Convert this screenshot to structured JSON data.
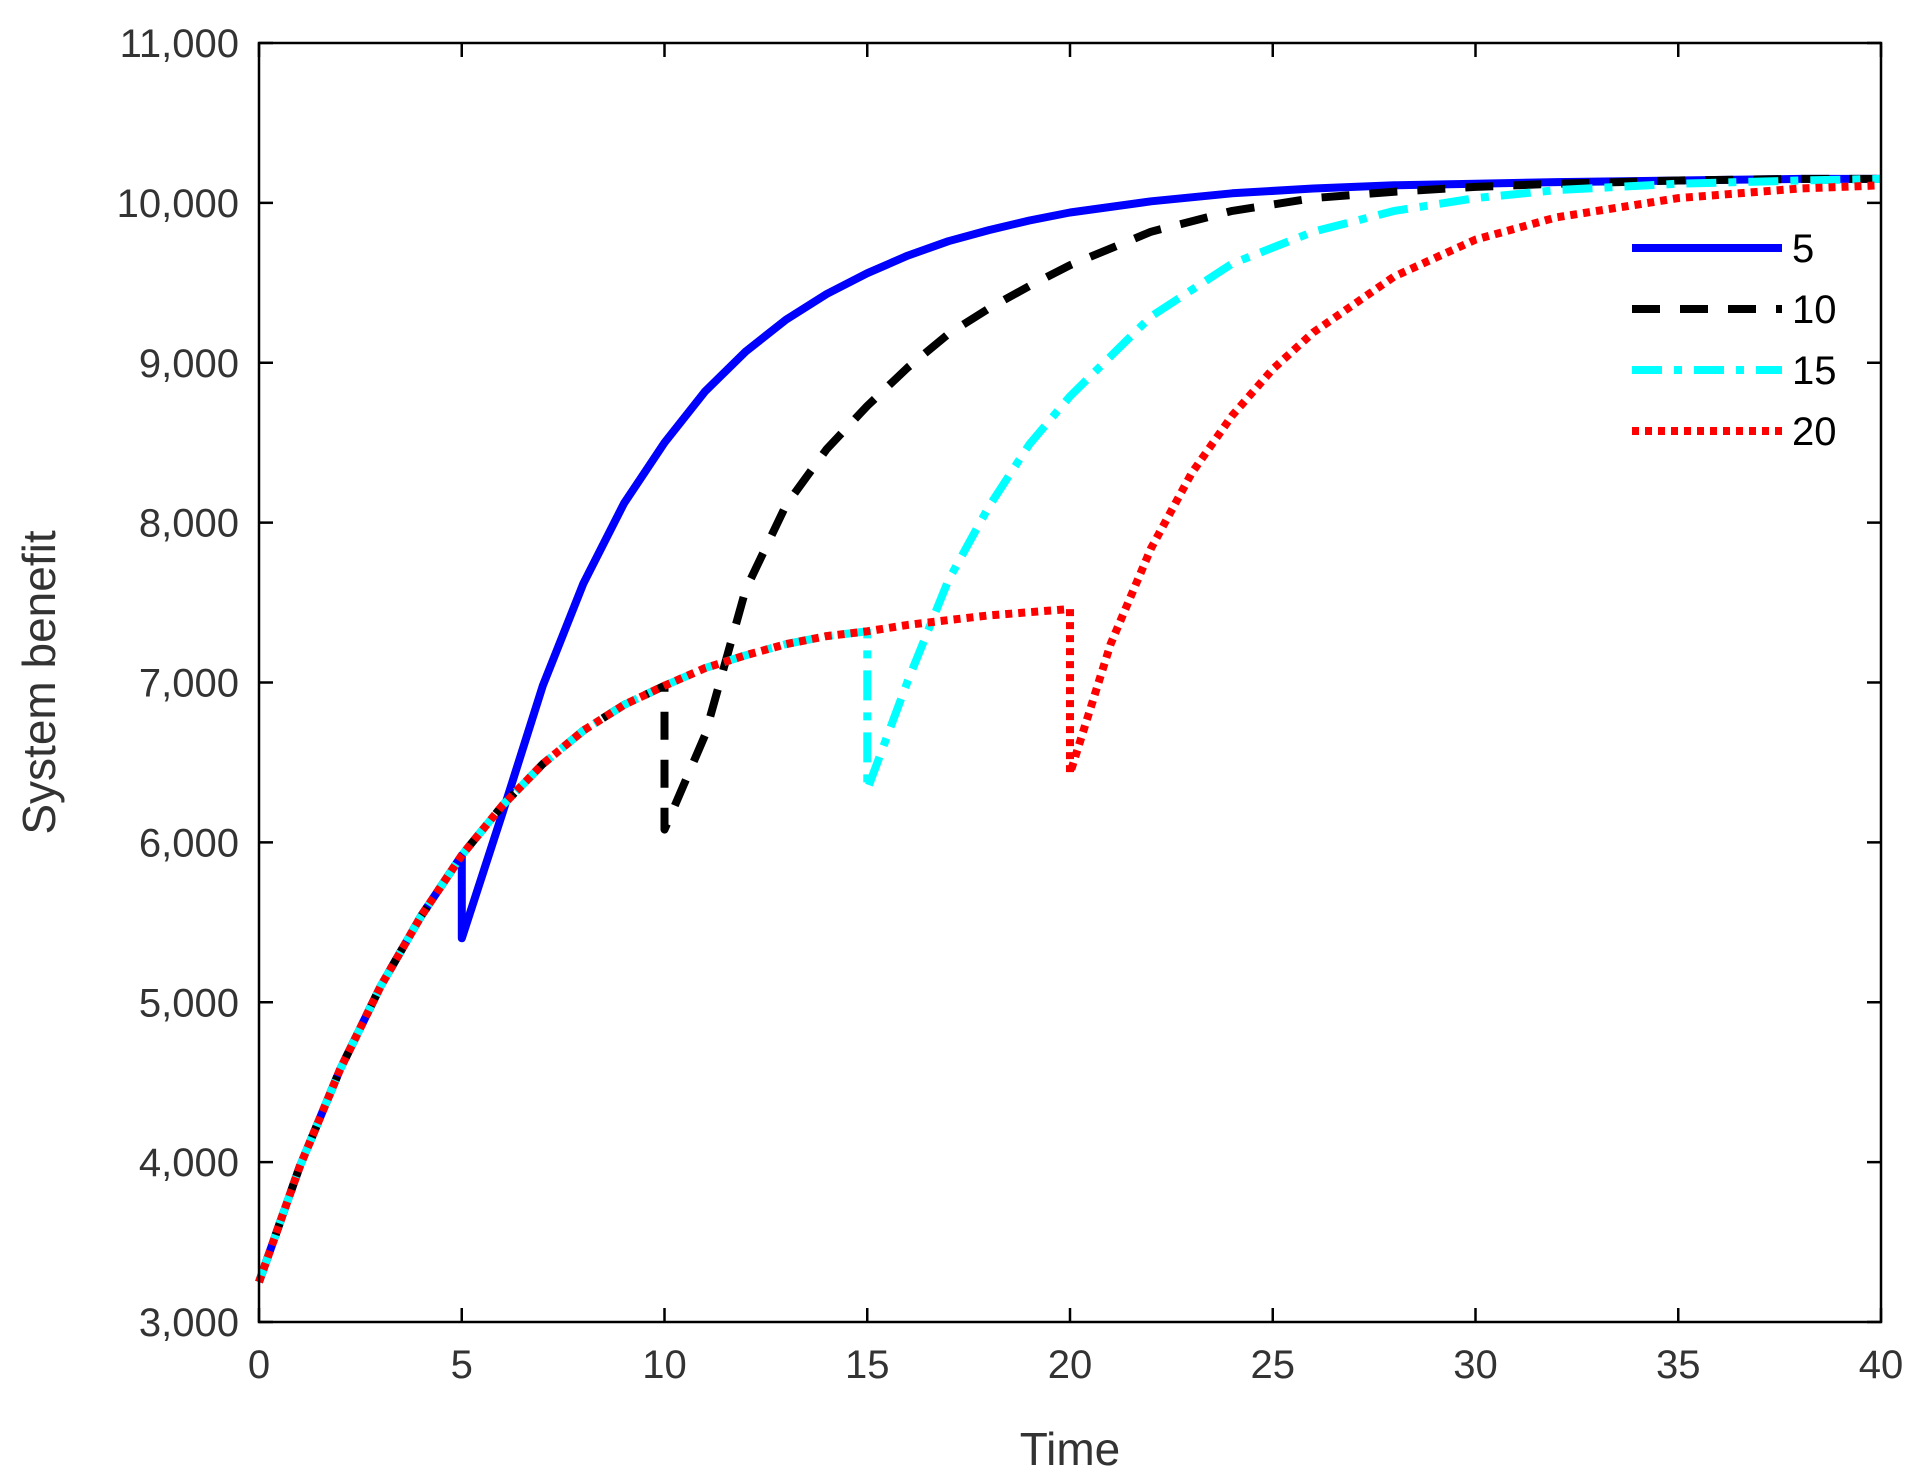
{
  "chart_data": {
    "type": "line",
    "title": "",
    "xlabel": "Time",
    "ylabel": "System benefit",
    "xlim": [
      0,
      40
    ],
    "ylim": [
      3000,
      11000
    ],
    "xticks": [
      0,
      5,
      10,
      15,
      20,
      25,
      30,
      35,
      40
    ],
    "yticks": [
      3000,
      4000,
      5000,
      6000,
      7000,
      8000,
      9000,
      10000,
      11000
    ],
    "xtick_labels": [
      "0",
      "5",
      "10",
      "15",
      "20",
      "25",
      "30",
      "35",
      "40"
    ],
    "ytick_labels": [
      "3,000",
      "4,000",
      "5,000",
      "6,000",
      "7,000",
      "8,000",
      "9,000",
      "10,000",
      "11,000"
    ],
    "grid": false,
    "legend_position": "top-right",
    "series": [
      {
        "name": "5",
        "color": "#0000ff",
        "style": "solid",
        "x": [
          0,
          1,
          2,
          3,
          4,
          5,
          5,
          6,
          7,
          8,
          9,
          10,
          11,
          12,
          13,
          14,
          15,
          16,
          17,
          18,
          19,
          20,
          22,
          24,
          26,
          28,
          30,
          32,
          35,
          38,
          40
        ],
        "y": [
          3250,
          3970,
          4580,
          5100,
          5540,
          5920,
          5400,
          6180,
          6980,
          7620,
          8120,
          8500,
          8820,
          9070,
          9270,
          9430,
          9560,
          9670,
          9760,
          9830,
          9890,
          9940,
          10010,
          10060,
          10090,
          10110,
          10120,
          10130,
          10140,
          10150,
          10150
        ]
      },
      {
        "name": "10",
        "color": "#000000",
        "style": "dashed",
        "x": [
          0,
          1,
          2,
          3,
          4,
          5,
          6,
          7,
          8,
          9,
          10,
          10,
          11,
          12,
          13,
          14,
          15,
          16,
          17,
          18,
          19,
          20,
          22,
          24,
          26,
          28,
          30,
          32,
          35,
          38,
          40
        ],
        "y": [
          3250,
          3970,
          4580,
          5100,
          5540,
          5920,
          6230,
          6490,
          6700,
          6860,
          6980,
          6080,
          6670,
          7580,
          8110,
          8460,
          8730,
          8970,
          9180,
          9340,
          9480,
          9610,
          9820,
          9950,
          10030,
          10070,
          10100,
          10120,
          10140,
          10150,
          10150
        ]
      },
      {
        "name": "15",
        "color": "#00ffff",
        "style": "dashdot",
        "x": [
          0,
          1,
          2,
          3,
          4,
          5,
          6,
          7,
          8,
          9,
          10,
          11,
          12,
          13,
          14,
          15,
          15,
          16,
          17,
          18,
          19,
          20,
          22,
          24,
          26,
          28,
          30,
          32,
          35,
          38,
          40
        ],
        "y": [
          3250,
          3970,
          4580,
          5100,
          5540,
          5920,
          6230,
          6490,
          6700,
          6860,
          6980,
          7090,
          7170,
          7240,
          7290,
          7320,
          6330,
          7010,
          7640,
          8100,
          8490,
          8790,
          9290,
          9620,
          9820,
          9950,
          10030,
          10080,
          10120,
          10140,
          10150
        ]
      },
      {
        "name": "20",
        "color": "#ff0000",
        "style": "dotted",
        "x": [
          0,
          1,
          2,
          3,
          4,
          5,
          6,
          7,
          8,
          9,
          10,
          11,
          12,
          13,
          14,
          15,
          16,
          17,
          18,
          19,
          20,
          20,
          21,
          22,
          23,
          24,
          25,
          26,
          28,
          30,
          32,
          35,
          38,
          40
        ],
        "y": [
          3250,
          3970,
          4580,
          5100,
          5540,
          5920,
          6230,
          6490,
          6700,
          6860,
          6980,
          7090,
          7170,
          7240,
          7290,
          7320,
          7360,
          7390,
          7420,
          7440,
          7460,
          6430,
          7240,
          7840,
          8310,
          8670,
          8960,
          9190,
          9540,
          9770,
          9910,
          10030,
          10090,
          10110
        ]
      }
    ]
  }
}
